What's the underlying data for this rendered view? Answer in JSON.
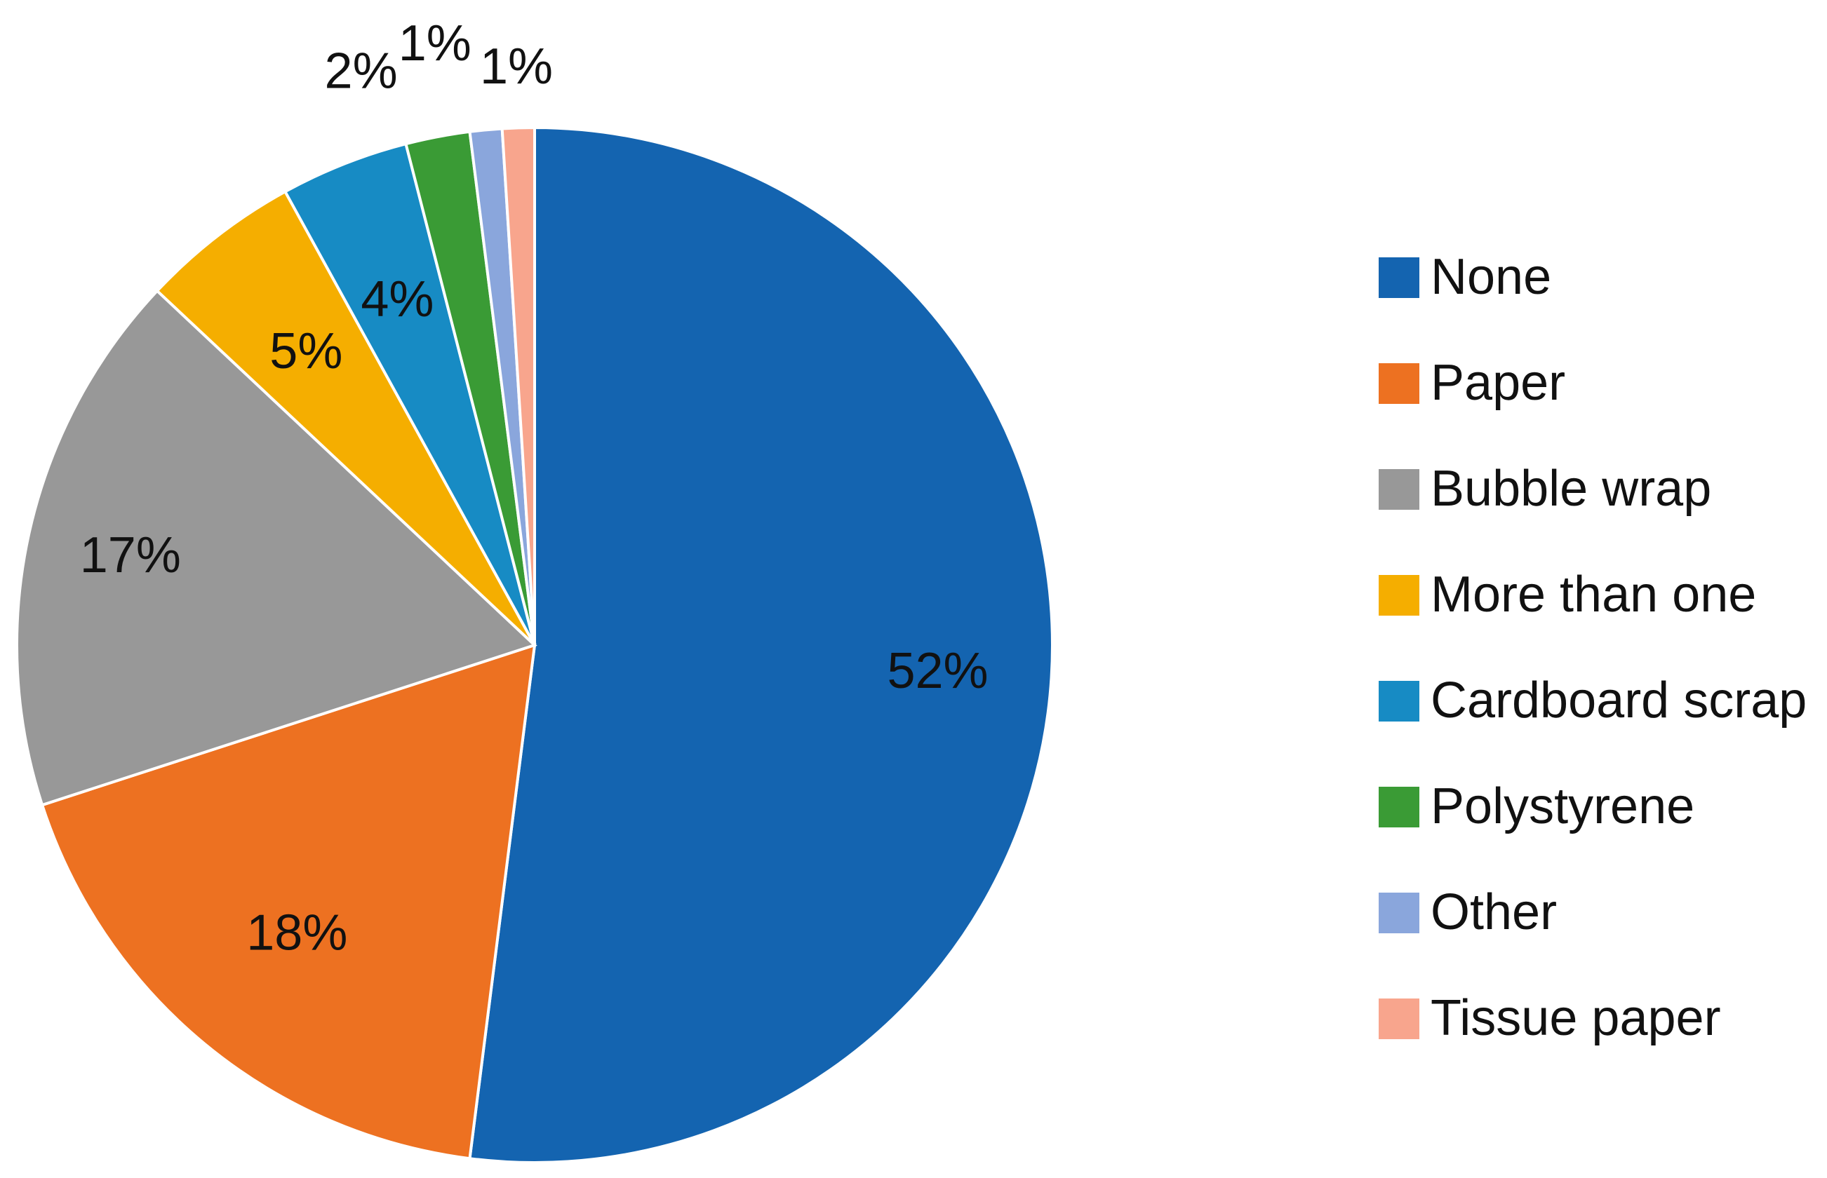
{
  "chart_data": {
    "type": "pie",
    "title": "",
    "categories": [
      "None",
      "Paper",
      "Bubble wrap",
      "More than one",
      "Cardboard scrap",
      "Polystyrene",
      "Other",
      "Tissue paper"
    ],
    "values": [
      52,
      18,
      17,
      5,
      4,
      2,
      1,
      1
    ],
    "data_labels": [
      "52%",
      "18%",
      "17%",
      "5%",
      "4%",
      "2%",
      "1%",
      "1%"
    ],
    "colors": [
      "#1464b0",
      "#ed7121",
      "#989898",
      "#f5ae00",
      "#178bc4",
      "#3a9b35",
      "#8aa6dc",
      "#f8a58d"
    ],
    "start_angle_deg": 0,
    "direction": "clockwise",
    "legend": {
      "position": "right"
    }
  }
}
